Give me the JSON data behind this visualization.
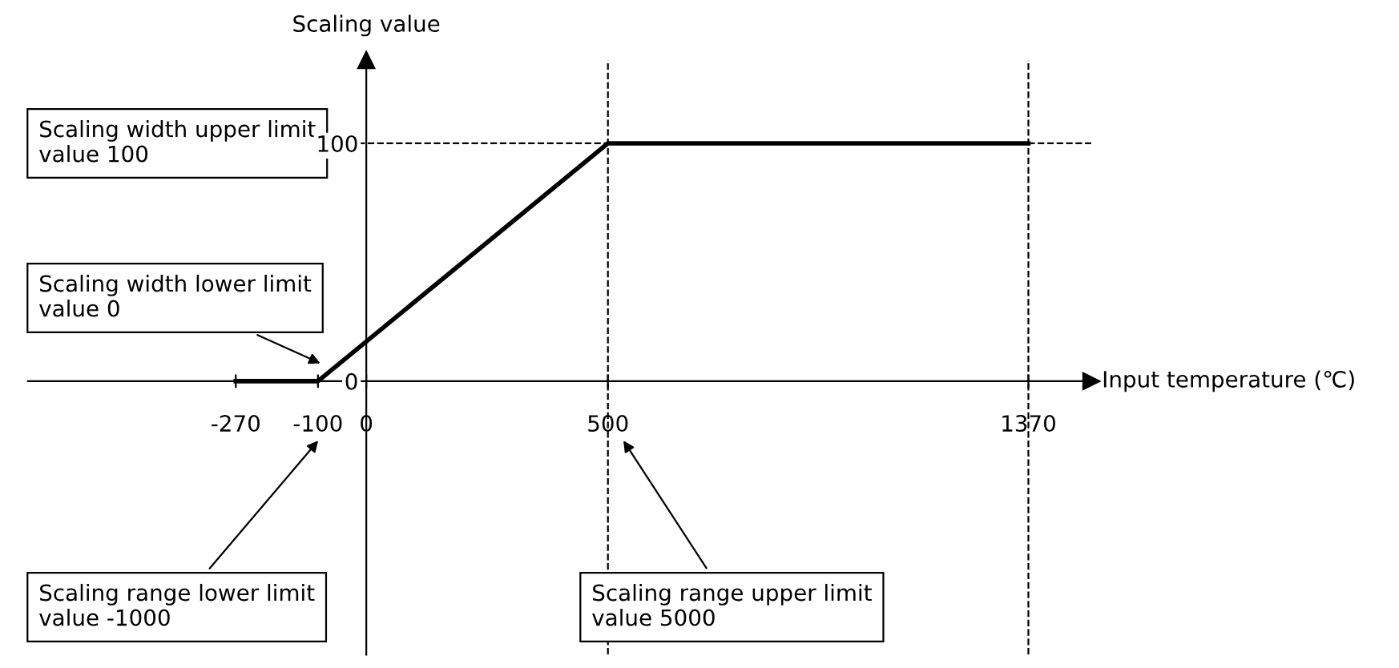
{
  "chart_data": {
    "type": "line",
    "xlabel": "Input temperature (℃)",
    "ylabel": "Scaling value",
    "x": [
      -270,
      -100,
      500,
      1370
    ],
    "series": [
      {
        "color": "#000000",
        "values": [
          0,
          0,
          100,
          100
        ]
      }
    ],
    "xlim": [
      -700,
      1500
    ],
    "ylim": [
      -115,
      135
    ],
    "xticks": [
      -270,
      -100,
      0,
      500,
      1370
    ],
    "yticks": [
      0,
      100
    ],
    "grid": false,
    "legend": false,
    "marker": "none",
    "line_style": "solid",
    "ref_lines": [
      {
        "axis": "y",
        "value": 100,
        "line_style": "dashed",
        "color": "#000000"
      },
      {
        "axis": "x",
        "value": 500,
        "line_style": "dashed",
        "color": "#000000"
      },
      {
        "axis": "x",
        "value": 1370,
        "line_style": "dashed",
        "color": "#000000"
      }
    ],
    "annotations": [
      "Scaling width upper limit\nvalue 100",
      "Scaling width lower limit\nvalue 0",
      "Scaling range lower limit\nvalue -1000",
      "Scaling range upper limit\nvalue 5000"
    ]
  }
}
